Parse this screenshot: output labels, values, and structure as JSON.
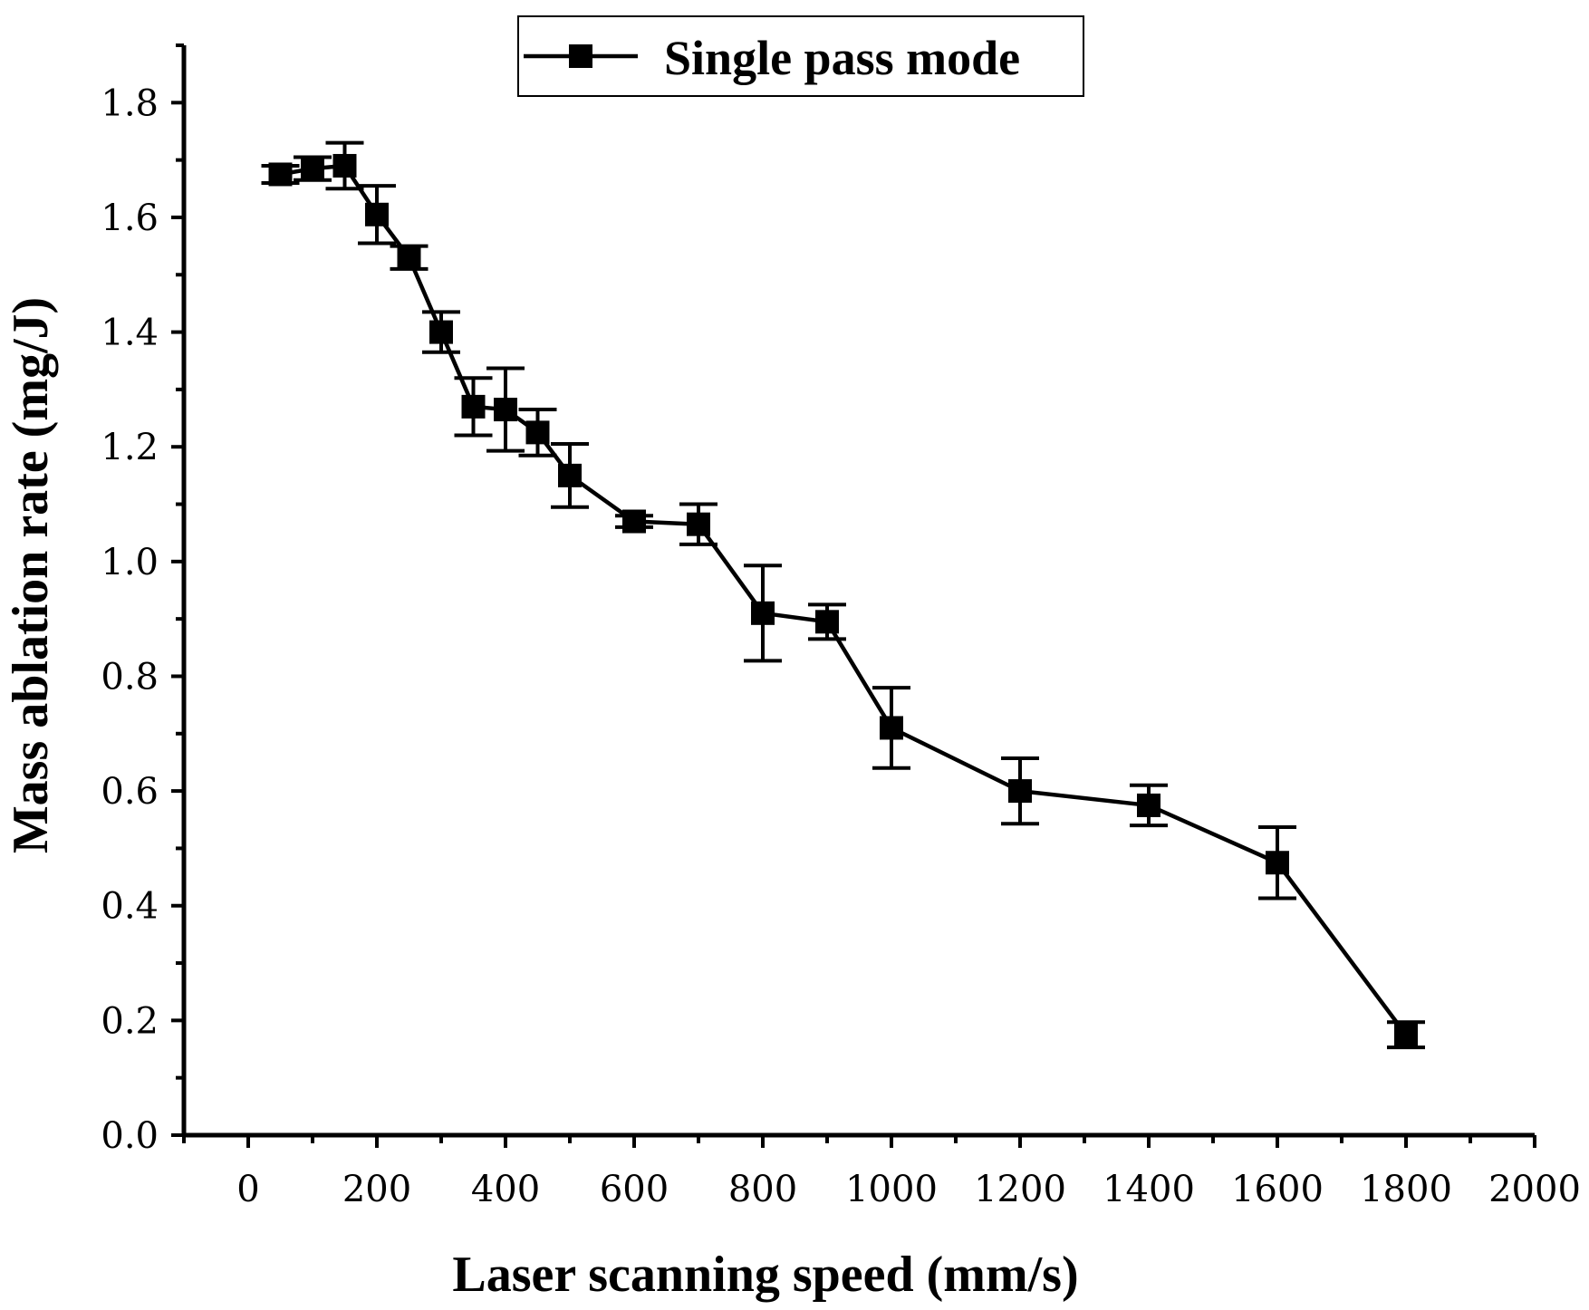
{
  "chart_data": {
    "type": "line",
    "title": "",
    "xlabel": "Laser scanning speed (mm/s)",
    "ylabel": "Mass ablation rate (mg/J)",
    "xlim": [
      -100,
      2000
    ],
    "ylim": [
      0,
      1.9
    ],
    "xticks": [
      "0",
      "200",
      "400",
      "600",
      "800",
      "1000",
      "1200",
      "1400",
      "1600",
      "1800",
      "2000"
    ],
    "yticks": [
      "0.0",
      "0.2",
      "0.4",
      "0.6",
      "0.8",
      "1.0",
      "1.2",
      "1.4",
      "1.6",
      "1.8"
    ],
    "grid": false,
    "legend_position": "top-center",
    "series": [
      {
        "name": "Single pass mode",
        "marker": "square",
        "color": "#000000",
        "x": [
          50,
          100,
          150,
          200,
          250,
          300,
          350,
          400,
          450,
          500,
          600,
          700,
          800,
          900,
          1000,
          1200,
          1400,
          1600,
          1800
        ],
        "y": [
          1.675,
          1.685,
          1.69,
          1.605,
          1.53,
          1.4,
          1.27,
          1.265,
          1.225,
          1.15,
          1.07,
          1.065,
          0.91,
          0.895,
          0.71,
          0.6,
          0.575,
          0.475,
          0.175
        ],
        "err": [
          0.015,
          0.02,
          0.04,
          0.05,
          0.02,
          0.035,
          0.05,
          0.072,
          0.04,
          0.055,
          0.01,
          0.035,
          0.083,
          0.03,
          0.07,
          0.057,
          0.035,
          0.062,
          0.022
        ]
      }
    ]
  }
}
